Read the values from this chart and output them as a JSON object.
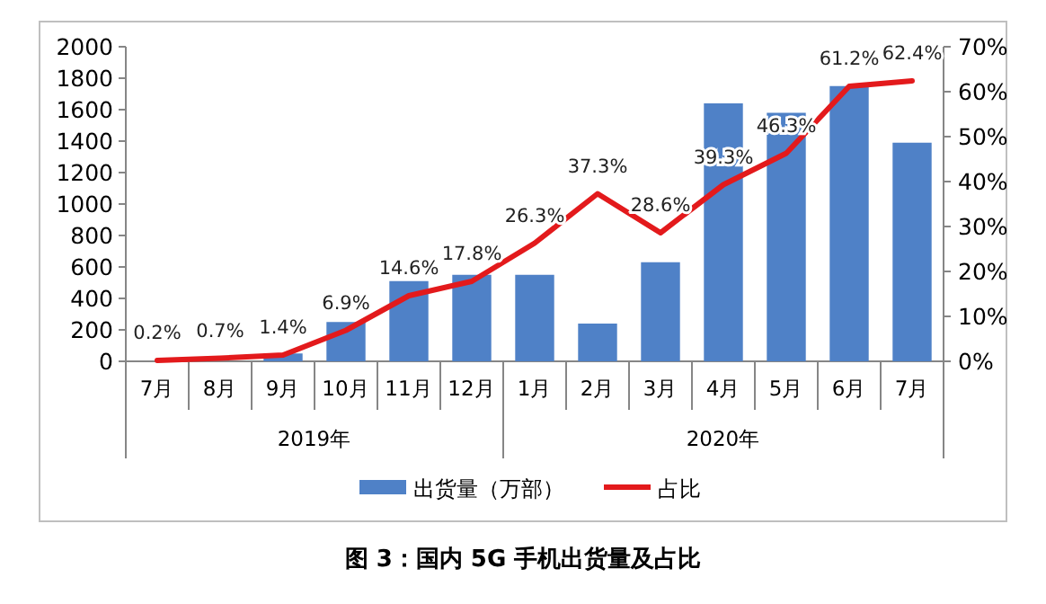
{
  "chart_data": {
    "type": "bar",
    "title": "图 3：国内 5G 手机出货量及占比",
    "categories": [
      "7月",
      "8月",
      "9月",
      "10月",
      "11月",
      "12月",
      "1月",
      "2月",
      "3月",
      "4月",
      "5月",
      "6月",
      "7月"
    ],
    "series": [
      {
        "name": "出货量（万部）",
        "color": "#4f81c7",
        "values": [
          0,
          null,
          50,
          250,
          510,
          550,
          550,
          240,
          630,
          1640,
          1580,
          1750,
          1390
        ]
      },
      {
        "name": "占比",
        "type": "line",
        "axis": "y2",
        "color": "#e31a1c",
        "values": [
          0.2,
          0.7,
          1.4,
          6.9,
          14.6,
          17.8,
          26.3,
          37.3,
          28.6,
          39.3,
          46.3,
          61.2,
          62.4
        ],
        "value_labels": [
          "0.2%",
          "0.7%",
          "1.4%",
          "6.9%",
          "14.6%",
          "17.8%",
          "26.3%",
          "37.3%",
          "28.6%",
          "39.3%",
          "46.3%",
          "61.2%",
          "62.4%"
        ]
      }
    ],
    "ylim": [
      0,
      2000
    ],
    "yticks": [
      0,
      200,
      400,
      600,
      800,
      1000,
      1200,
      1400,
      1600,
      1800,
      2000
    ],
    "y2lim": [
      0,
      70
    ],
    "y2ticks": [
      {
        "value": 0,
        "label": "0%"
      },
      {
        "value": 10,
        "label": "10%"
      },
      {
        "value": 20,
        "label": "20%"
      },
      {
        "value": 30,
        "label": "30%"
      },
      {
        "value": 40,
        "label": "40%"
      },
      {
        "value": 50,
        "label": "50%"
      },
      {
        "value": 60,
        "label": "60%"
      },
      {
        "value": 70,
        "label": "70%"
      }
    ],
    "annotations": [
      "2019年",
      "2020年"
    ],
    "legend": "bottom",
    "grid": false
  }
}
